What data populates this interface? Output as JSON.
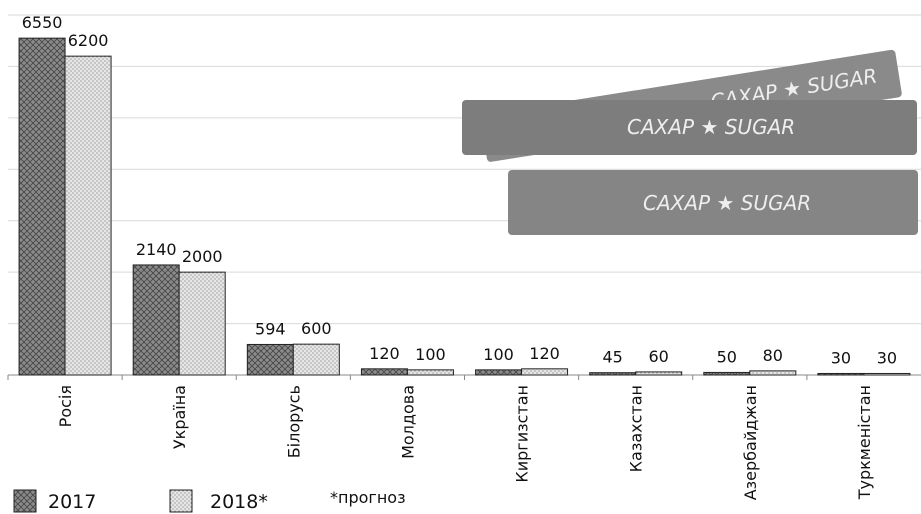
{
  "chart_data": {
    "type": "bar",
    "categories": [
      "Росія",
      "Україна",
      "Білорусь",
      "Молдова",
      "Киргизстан",
      "Казахстан",
      "Азербайджан",
      "Туркменістан"
    ],
    "series": [
      {
        "name": "2017",
        "color": "#8a8a8a",
        "values": [
          6550,
          2140,
          594,
          120,
          100,
          45,
          50,
          30
        ]
      },
      {
        "name": "2018*",
        "color": "#e6e6e6",
        "values": [
          6200,
          2000,
          600,
          100,
          120,
          60,
          80,
          30
        ]
      }
    ],
    "ylim": [
      0,
      7000
    ],
    "yticks": [
      0,
      1000,
      2000,
      3000,
      4000,
      5000,
      6000,
      7000
    ],
    "grid": true,
    "annotation": "*прогноз",
    "illustration_text": "САХАР ★ SUGAR"
  }
}
